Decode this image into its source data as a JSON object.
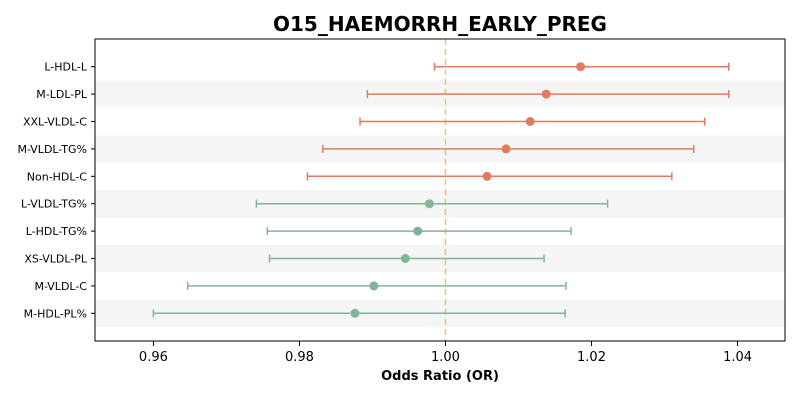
{
  "chart_data": {
    "type": "scatter",
    "subtype": "forest-plot",
    "title": "O15_HAEMORRH_EARLY_PREG",
    "xlabel": "Odds Ratio (OR)",
    "ylabel": "",
    "xlim": [
      0.952,
      1.0465
    ],
    "xticks": [
      0.96,
      0.98,
      1.0,
      1.02,
      1.04
    ],
    "xtick_labels": [
      "0.96",
      "0.98",
      "1.00",
      "1.02",
      "1.04"
    ],
    "reference_line": 1.0,
    "grid": false,
    "alternating_row_shading": true,
    "colors": {
      "positive": "#e07b5f",
      "negative": "#82b49a",
      "reference_line": "#f0c070",
      "row_shade": "#f5f5f5"
    },
    "rows": [
      {
        "label": "L-HDL-L",
        "or": 1.0185,
        "lower": 0.9985,
        "upper": 1.0388
      },
      {
        "label": "M-LDL-PL",
        "or": 1.0138,
        "lower": 0.9893,
        "upper": 1.0388
      },
      {
        "label": "XXL-VLDL-C",
        "or": 1.0116,
        "lower": 0.9883,
        "upper": 1.0355
      },
      {
        "label": "M-VLDL-TG%",
        "or": 1.0083,
        "lower": 0.9832,
        "upper": 1.034
      },
      {
        "label": "Non-HDL-C",
        "or": 1.0057,
        "lower": 0.9811,
        "upper": 1.031
      },
      {
        "label": "L-VLDL-TG%",
        "or": 0.9978,
        "lower": 0.9741,
        "upper": 1.0222
      },
      {
        "label": "L-HDL-TG%",
        "or": 0.9962,
        "lower": 0.9756,
        "upper": 1.0172
      },
      {
        "label": "XS-VLDL-PL",
        "or": 0.9945,
        "lower": 0.9759,
        "upper": 1.0135
      },
      {
        "label": "M-VLDL-C",
        "or": 0.9902,
        "lower": 0.9647,
        "upper": 1.0165
      },
      {
        "label": "M-HDL-PL%",
        "or": 0.9876,
        "lower": 0.96,
        "upper": 1.0164
      }
    ]
  }
}
